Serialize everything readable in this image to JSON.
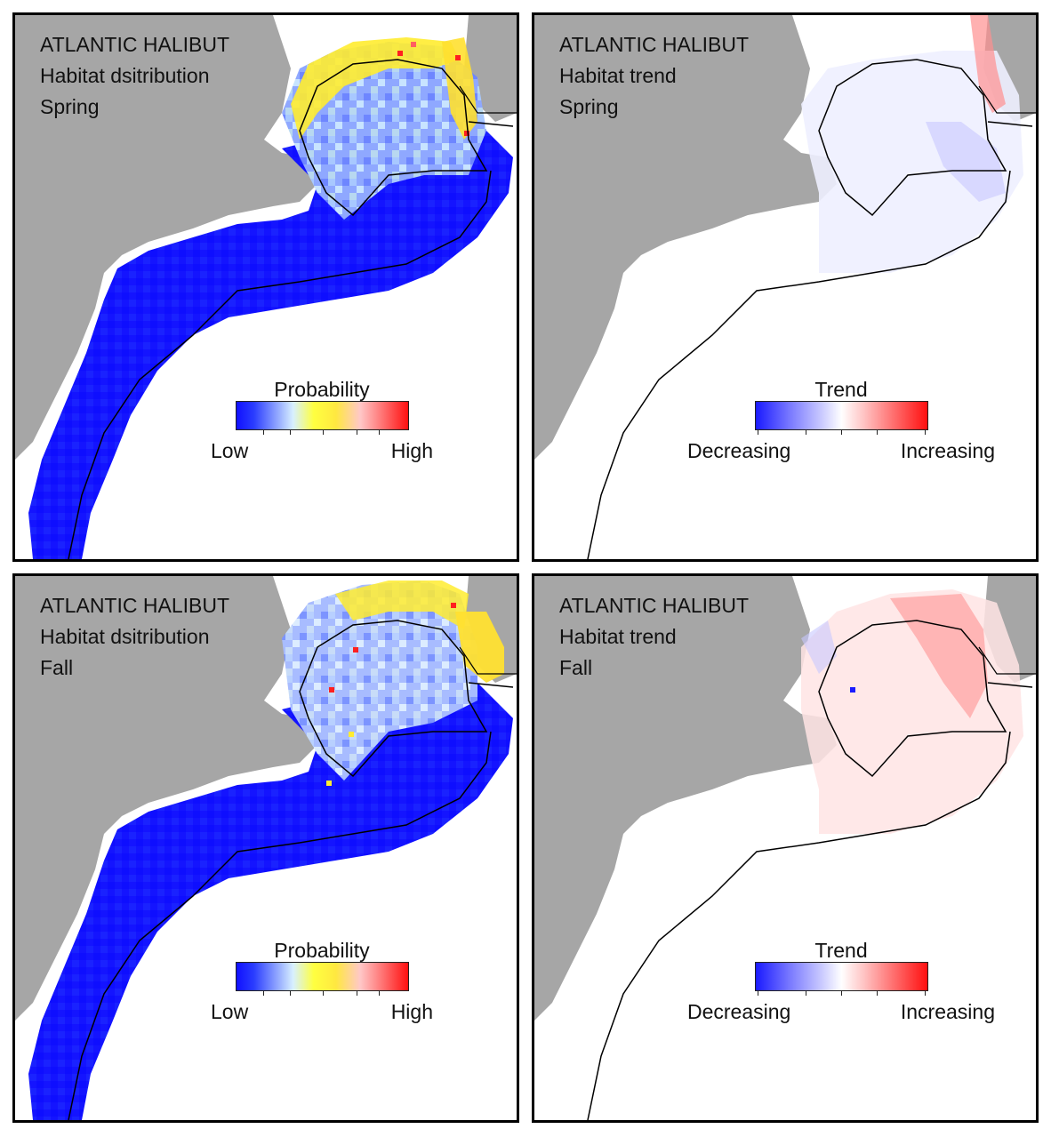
{
  "panels": [
    {
      "id": "p1",
      "title_line1": "ATLANTIC HALIBUT",
      "title_line2": "Habitat dsitribution",
      "season": "Spring",
      "kind": "probability",
      "legend": {
        "title": "Probability",
        "low": "Low",
        "high": "High"
      }
    },
    {
      "id": "p2",
      "title_line1": "ATLANTIC HALIBUT",
      "title_line2": "Habitat trend",
      "season": "Spring",
      "kind": "trend",
      "legend": {
        "title": "Trend",
        "low": "Decreasing",
        "high": "Increasing"
      }
    },
    {
      "id": "p3",
      "title_line1": "ATLANTIC HALIBUT",
      "title_line2": "Habitat dsitribution",
      "season": "Fall",
      "kind": "probability",
      "legend": {
        "title": "Probability",
        "low": "Low",
        "high": "High"
      }
    },
    {
      "id": "p4",
      "title_line1": "ATLANTIC HALIBUT",
      "title_line2": "Habitat trend",
      "season": "Fall",
      "kind": "trend",
      "legend": {
        "title": "Trend",
        "low": "Decreasing",
        "high": "Increasing"
      }
    }
  ],
  "colors": {
    "land": "#a6a6a6",
    "water": "#ffffff",
    "coastline": "#000000",
    "low_probability": "#1414ff",
    "mid_probability": "#ffff40",
    "high_probability": "#ff1010",
    "decreasing": "#1a1aff",
    "increasing": "#ff1010"
  }
}
